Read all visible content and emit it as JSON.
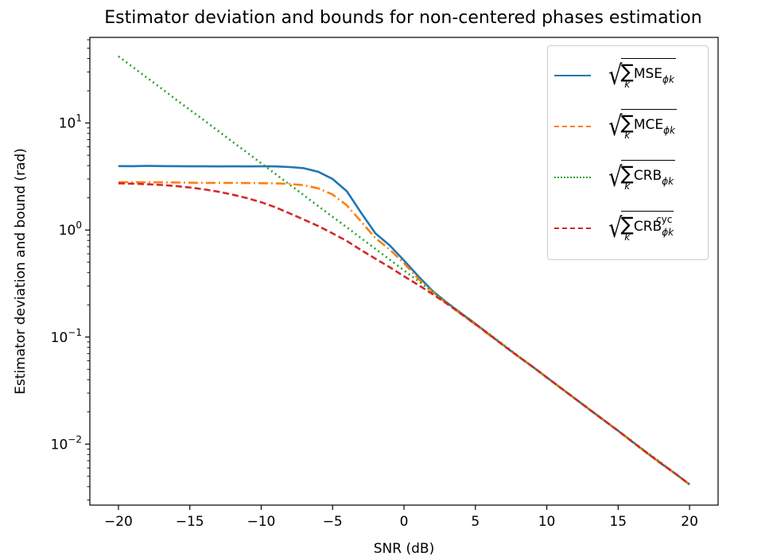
{
  "chart_data": {
    "type": "line",
    "title": "Estimator deviation and bounds for non-centered phases estimation",
    "xlabel": "SNR (dB)",
    "ylabel": "Estimator deviation and bound (rad)",
    "xlim": [
      -22,
      22
    ],
    "ylim_log10": [
      -2.57,
      1.8
    ],
    "yscale": "log",
    "x_ticks": [
      -20,
      -15,
      -10,
      -5,
      0,
      5,
      10,
      15,
      20
    ],
    "x_tick_labels": [
      "−20",
      "−15",
      "−10",
      "−5",
      "0",
      "5",
      "10",
      "15",
      "20"
    ],
    "y_ticks": [
      0.01,
      0.1,
      1,
      10
    ],
    "y_tick_labels": [
      {
        "base": "10",
        "exp": "−2"
      },
      {
        "base": "10",
        "exp": "−1"
      },
      {
        "base": "10",
        "exp": "0"
      },
      {
        "base": "10",
        "exp": "1"
      }
    ],
    "grid": false,
    "legend_position": "top-right",
    "series": [
      {
        "name": "MSE",
        "sub": "ϕk",
        "sup": "",
        "color": "#1f77b4",
        "style": "solid",
        "x": [
          -20,
          -19,
          -18,
          -17,
          -16,
          -15,
          -14,
          -13,
          -12,
          -11,
          -10,
          -9,
          -8,
          -7,
          -6,
          -5,
          -4,
          -3,
          -2,
          -1,
          0,
          1,
          2,
          3,
          4,
          5,
          6,
          7,
          8,
          9,
          10,
          11,
          12,
          13,
          14,
          15,
          16,
          17,
          18,
          19,
          20
        ],
        "y": [
          3.96,
          3.95,
          3.98,
          3.96,
          3.95,
          3.94,
          3.94,
          3.93,
          3.94,
          3.93,
          3.94,
          3.93,
          3.88,
          3.78,
          3.5,
          3.0,
          2.3,
          1.45,
          0.93,
          0.72,
          0.52,
          0.37,
          0.27,
          0.21,
          0.167,
          0.133,
          0.105,
          0.083,
          0.066,
          0.053,
          0.042,
          0.0333,
          0.0265,
          0.021,
          0.0167,
          0.0133,
          0.0105,
          0.0083,
          0.0066,
          0.0053,
          0.0042
        ]
      },
      {
        "name": "MCE",
        "sub": "ϕk",
        "sup": "",
        "color": "#ff7f0e",
        "style": "dashdot",
        "x": [
          -20,
          -19,
          -18,
          -17,
          -16,
          -15,
          -14,
          -13,
          -12,
          -11,
          -10,
          -9,
          -8,
          -7,
          -6,
          -5,
          -4,
          -3,
          -2,
          -1,
          0,
          1,
          2,
          3,
          4,
          5,
          6,
          7,
          8,
          9,
          10,
          11,
          12,
          13,
          14,
          15,
          16,
          17,
          18,
          19,
          20
        ],
        "y": [
          2.8,
          2.8,
          2.79,
          2.79,
          2.78,
          2.77,
          2.76,
          2.76,
          2.76,
          2.75,
          2.74,
          2.73,
          2.7,
          2.62,
          2.45,
          2.15,
          1.7,
          1.2,
          0.84,
          0.66,
          0.49,
          0.35,
          0.265,
          0.206,
          0.164,
          0.131,
          0.104,
          0.083,
          0.066,
          0.053,
          0.042,
          0.0333,
          0.0265,
          0.021,
          0.0167,
          0.0133,
          0.0105,
          0.0083,
          0.0066,
          0.0053,
          0.0042
        ]
      },
      {
        "name": "CRB",
        "sub": "ϕk",
        "sup": "",
        "color": "#2ca02c",
        "style": "dotted",
        "x": [
          -20,
          -19,
          -18,
          -17,
          -16,
          -15,
          -14,
          -13,
          -12,
          -11,
          -10,
          -9,
          -8,
          -7,
          -6,
          -5,
          -4,
          -3,
          -2,
          -1,
          0,
          1,
          2,
          3,
          4,
          5,
          6,
          7,
          8,
          9,
          10,
          11,
          12,
          13,
          14,
          15,
          16,
          17,
          18,
          19,
          20
        ],
        "y": [
          42,
          33.4,
          26.5,
          21.1,
          16.7,
          13.3,
          10.6,
          8.4,
          6.67,
          5.3,
          4.2,
          3.34,
          2.65,
          2.11,
          1.67,
          1.33,
          1.06,
          0.84,
          0.667,
          0.53,
          0.42,
          0.334,
          0.265,
          0.211,
          0.167,
          0.133,
          0.106,
          0.084,
          0.0667,
          0.053,
          0.042,
          0.0334,
          0.0265,
          0.0211,
          0.0167,
          0.0133,
          0.0106,
          0.0084,
          0.0067,
          0.0053,
          0.0042
        ]
      },
      {
        "name": "CRB",
        "sub": "ϕk",
        "sup": "cyc",
        "color": "#d62728",
        "style": "dashed",
        "x": [
          -20,
          -19,
          -18,
          -17,
          -16,
          -15,
          -14,
          -13,
          -12,
          -11,
          -10,
          -9,
          -8,
          -7,
          -6,
          -5,
          -4,
          -3,
          -2,
          -1,
          0,
          1,
          2,
          3,
          4,
          5,
          6,
          7,
          8,
          9,
          10,
          11,
          12,
          13,
          14,
          15,
          16,
          17,
          18,
          19,
          20
        ],
        "y": [
          2.73,
          2.71,
          2.68,
          2.64,
          2.58,
          2.5,
          2.4,
          2.28,
          2.14,
          1.99,
          1.82,
          1.63,
          1.43,
          1.25,
          1.09,
          0.93,
          0.79,
          0.65,
          0.54,
          0.45,
          0.37,
          0.307,
          0.252,
          0.205,
          0.165,
          0.132,
          0.105,
          0.083,
          0.066,
          0.053,
          0.042,
          0.0333,
          0.0265,
          0.021,
          0.0167,
          0.0133,
          0.0105,
          0.0083,
          0.0066,
          0.0053,
          0.0042
        ]
      }
    ]
  }
}
